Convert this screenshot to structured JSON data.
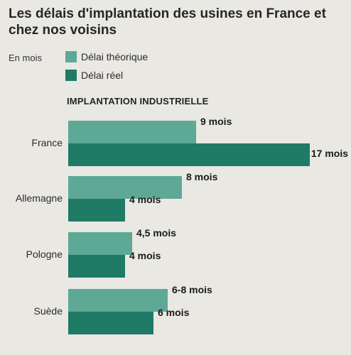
{
  "title": "Les délais d'implantation des usines en France et chez nos voisins",
  "unit_label": "En mois",
  "section_title": "IMPLANTATION INDUSTRIELLE",
  "colors": {
    "theorique": "#5ea896",
    "reel": "#1f7a66"
  },
  "chart_data": {
    "type": "bar",
    "orientation": "horizontal",
    "title": "Les délais d'implantation des usines en France et chez nos voisins",
    "subtitle": "IMPLANTATION INDUSTRIELLE",
    "ylabel": "En mois",
    "categories": [
      "France",
      "Allemagne",
      "Pologne",
      "Suède"
    ],
    "series": [
      {
        "name": "Délai théorique",
        "values": [
          9,
          8,
          4.5,
          7
        ],
        "labels": [
          "9 mois",
          "8 mois",
          "4,5 mois",
          "6-8 mois"
        ]
      },
      {
        "name": "Délai réel",
        "values": [
          17,
          4,
          4,
          6
        ],
        "labels": [
          "17 mois",
          "4 mois",
          "4 mois",
          "6 mois"
        ]
      }
    ],
    "xlim": [
      0,
      17
    ],
    "legend_position": "top-left",
    "grid": false
  }
}
